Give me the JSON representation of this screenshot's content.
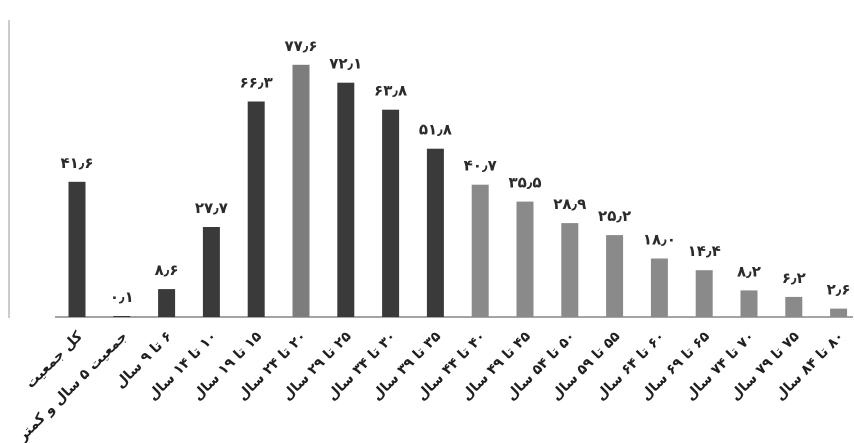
{
  "chart_data": {
    "type": "bar",
    "title": "",
    "xlabel": "",
    "ylabel": "",
    "ylim": [
      0,
      80
    ],
    "grid": false,
    "legend": "none",
    "categories": [
      "کل جمعیت",
      "جمعیت ۵ سال و کمتر",
      "۶ تا ۹ سال",
      "۱۰ تا ۱۴ سال",
      "۱۵ تا ۱۹ سال",
      "۲۰ تا ۲۴ سال",
      "۲۵ تا ۲۹ سال",
      "۳۰ تا ۳۴ سال",
      "۳۵ تا ۳۹ سال",
      "۴۰ تا ۴۴ سال",
      "۴۵ تا ۴۹ سال",
      "۵۰ تا ۵۴ سال",
      "۵۵ تا ۵۹ سال",
      "۶۰ تا ۶۴ سال",
      "۶۵ تا ۶۹ سال",
      "۷۰ تا ۷۴ سال",
      "۷۵ تا ۷۹ سال",
      "۸۰ تا ۸۴ سال"
    ],
    "values": [
      41.6,
      0.1,
      8.6,
      27.7,
      66.3,
      77.6,
      72.1,
      63.8,
      51.8,
      40.7,
      35.5,
      28.9,
      25.2,
      18.0,
      14.4,
      8.2,
      6.2,
      2.6
    ],
    "value_labels": [
      "۴۱٫۶",
      "۰٫۱",
      "۸٫۶",
      "۲۷٫۷",
      "۶۶٫۳",
      "۷۷٫۶",
      "۷۲٫۱",
      "۶۳٫۸",
      "۵۱٫۸",
      "۴۰٫۷",
      "۳۵٫۵",
      "۲۸٫۹",
      "۲۵٫۲",
      "۱۸٫۰",
      "۱۴٫۴",
      "۸٫۲",
      "۶٫۲",
      "۲٫۶"
    ],
    "bar_colors": [
      "#3a3a3a",
      "#3a3a3a",
      "#3a3a3a",
      "#3a3a3a",
      "#3a3a3a",
      "#7d7d7d",
      "#3a3a3a",
      "#3a3a3a",
      "#3a3a3a",
      "#8a8a8a",
      "#8a8a8a",
      "#8a8a8a",
      "#8a8a8a",
      "#8a8a8a",
      "#8a8a8a",
      "#8a8a8a",
      "#8a8a8a",
      "#8a8a8a"
    ]
  }
}
